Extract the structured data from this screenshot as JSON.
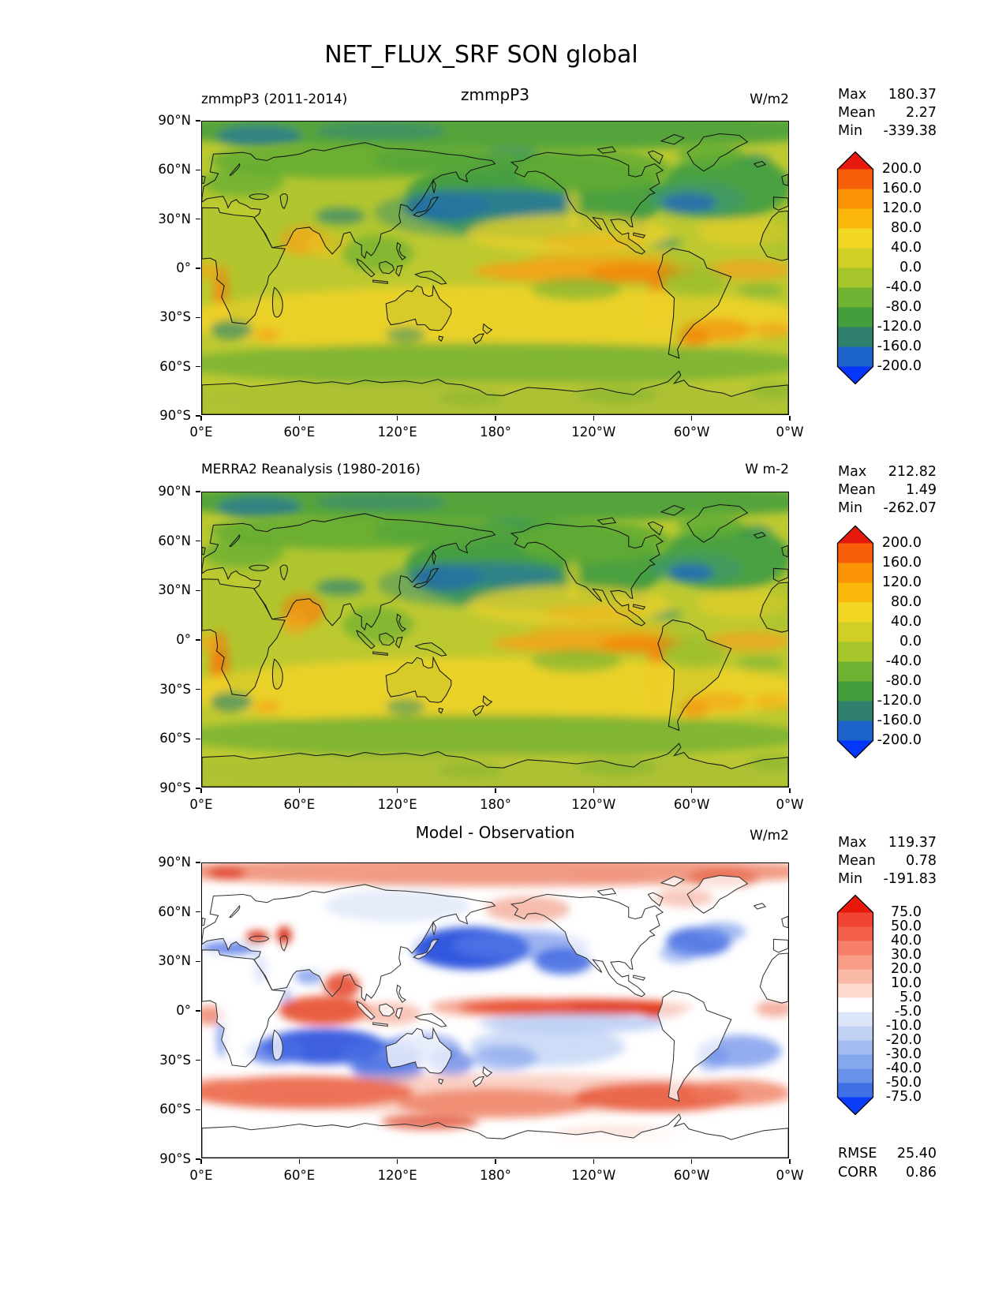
{
  "figure_title": "NET_FLUX_SRF SON global",
  "axes": {
    "x_tick_labels": [
      "0°E",
      "60°E",
      "120°E",
      "180°",
      "120°W",
      "60°W",
      "0°W"
    ],
    "y_tick_labels": [
      "90°N",
      "60°N",
      "30°N",
      "0°",
      "30°S",
      "60°S",
      "90°S"
    ]
  },
  "panels": [
    {
      "key": "model",
      "title_left": "zmmpP3 (2011-2014)",
      "title_center": "zmmpP3",
      "title_right": "W/m2",
      "stats": [
        [
          "Max",
          "180.37"
        ],
        [
          "Mean",
          "2.27"
        ],
        [
          "Min",
          "-339.38"
        ]
      ],
      "colorbar": {
        "tick_labels": [
          "200.0",
          "160.0",
          "120.0",
          "80.0",
          "40.0",
          "0.0",
          "-40.0",
          "-80.0",
          "-120.0",
          "-160.0",
          "-200.0"
        ],
        "colors": [
          "#e61a0d",
          "#f85f0a",
          "#fa9406",
          "#fbb80b",
          "#f2d724",
          "#cfcf25",
          "#a6c62b",
          "#70b231",
          "#429e3d",
          "#2f806c",
          "#1b63c8",
          "#0537fa"
        ]
      }
    },
    {
      "key": "obs",
      "title_left": "MERRA2 Reanalysis (1980-2016)",
      "title_center": "",
      "title_right": "W m-2",
      "stats": [
        [
          "Max",
          "212.82"
        ],
        [
          "Mean",
          "1.49"
        ],
        [
          "Min",
          "-262.07"
        ]
      ],
      "colorbar": {
        "tick_labels": [
          "200.0",
          "160.0",
          "120.0",
          "80.0",
          "40.0",
          "0.0",
          "-40.0",
          "-80.0",
          "-120.0",
          "-160.0",
          "-200.0"
        ],
        "colors": [
          "#e61a0d",
          "#f85f0a",
          "#fa9406",
          "#fbb80b",
          "#f2d724",
          "#cfcf25",
          "#a6c62b",
          "#70b231",
          "#429e3d",
          "#2f806c",
          "#1b63c8",
          "#0537fa"
        ]
      }
    },
    {
      "key": "diff",
      "title_left": "",
      "title_center": "Model - Observation",
      "title_right": "W/m2",
      "stats": [
        [
          "Max",
          "119.37"
        ],
        [
          "Mean",
          "0.78"
        ],
        [
          "Min",
          "-191.83"
        ]
      ],
      "extra_stats": [
        [
          "RMSE",
          "25.40"
        ],
        [
          "CORR",
          "0.86"
        ]
      ],
      "colorbar": {
        "tick_labels": [
          "75.0",
          "50.0",
          "40.0",
          "30.0",
          "20.0",
          "10.0",
          "5.0",
          "-5.0",
          "-10.0",
          "-20.0",
          "-30.0",
          "-40.0",
          "-50.0",
          "-75.0"
        ],
        "colors": [
          "#e8180b",
          "#f04433",
          "#f3614d",
          "#f57f69",
          "#f89c86",
          "#fab9a5",
          "#fdd8cb",
          "#ffffff",
          "#dce6f8",
          "#c1d2f5",
          "#a3bdf1",
          "#85a8ee",
          "#6892ea",
          "#3f70e6",
          "#0b3efb"
        ]
      }
    }
  ],
  "chart_data": [
    {
      "type": "heatmap",
      "panel": "top",
      "variable": "NET_FLUX_SRF",
      "season": "SON",
      "region": "global",
      "title": "zmmpP3",
      "subtitle_left": "zmmpP3 (2011-2014)",
      "units": "W/m2",
      "projection": "global equirectangular, longitude 0°E to 0°W",
      "stats": {
        "max": 180.37,
        "mean": 2.27,
        "min": -339.38
      },
      "colorbar_levels": [
        200,
        160,
        120,
        80,
        40,
        0,
        -40,
        -80,
        -120,
        -160,
        -200
      ],
      "colorbar_extend": "both",
      "legend_position": "right",
      "x_ticks": [
        "0°E",
        "60°E",
        "120°E",
        "180°",
        "120°W",
        "60°W",
        "0°W"
      ],
      "y_ticks": [
        "90°N",
        "60°N",
        "30°N",
        "0°",
        "30°S",
        "60°S",
        "90°S"
      ],
      "notable_features": [
        "field mostly yellow-green (0 to 40 W/m2) with yellow subtropical bands",
        "deep blue negative anomalies over Kuroshio (NW Pacific) and Gulf Stream (NW Atlantic)",
        "orange positive band along equatorial east Pacific and coastal upwelling zones off Peru and SW Africa",
        "green negative regions over northern continents, mid-latitude gyres and Southern Ocean"
      ]
    },
    {
      "type": "heatmap",
      "panel": "middle",
      "variable": "NET_FLUX_SRF",
      "season": "SON",
      "region": "global",
      "title": "MERRA2 Reanalysis (1980-2016)",
      "units": "W m-2",
      "projection": "global equirectangular, longitude 0°E to 0°W",
      "stats": {
        "max": 212.82,
        "mean": 1.49,
        "min": -262.07
      },
      "colorbar_levels": [
        200,
        160,
        120,
        80,
        40,
        0,
        -40,
        -80,
        -120,
        -160,
        -200
      ],
      "colorbar_extend": "both",
      "legend_position": "right",
      "x_ticks": [
        "0°E",
        "60°E",
        "120°E",
        "180°",
        "120°W",
        "60°W",
        "0°W"
      ],
      "y_ticks": [
        "90°N",
        "60°N",
        "30°N",
        "0°",
        "30°S",
        "60°S",
        "90°S"
      ],
      "notable_features": [
        "pattern very similar to model panel",
        "blue western-boundary-current minima near Japan and off US east coast",
        "strong orange upwelling signals off Somalia/Arabia, Peru and SW Africa"
      ]
    },
    {
      "type": "heatmap",
      "panel": "bottom",
      "variable": "NET_FLUX_SRF difference",
      "season": "SON",
      "region": "global",
      "title": "Model - Observation",
      "units": "W/m2",
      "projection": "global equirectangular, longitude 0°E to 0°W",
      "stats": {
        "max": 119.37,
        "mean": 0.78,
        "min": -191.83
      },
      "rmse": 25.4,
      "corr": 0.86,
      "colorbar_levels": [
        75,
        50,
        40,
        30,
        20,
        10,
        5,
        -5,
        -10,
        -20,
        -30,
        -40,
        -50,
        -75
      ],
      "colorbar_extend": "both",
      "legend_position": "right",
      "x_ticks": [
        "0°E",
        "60°E",
        "120°E",
        "180°",
        "120°W",
        "60°W",
        "0°W"
      ],
      "y_ticks": [
        "90°N",
        "60°N",
        "30°N",
        "0°",
        "30°S",
        "60°S",
        "90°S"
      ],
      "notable_features": [
        "near-zero white over most land areas",
        "red positive bias along equatorial Pacific, tropical Indian Ocean and Southern Ocean 45-65S",
        "blue negative bias over NW Pacific, NE Pacific, N Atlantic, Mediterranean and subtropical southern oceans",
        "strong red spots over Black Sea and Caspian Sea"
      ]
    }
  ]
}
